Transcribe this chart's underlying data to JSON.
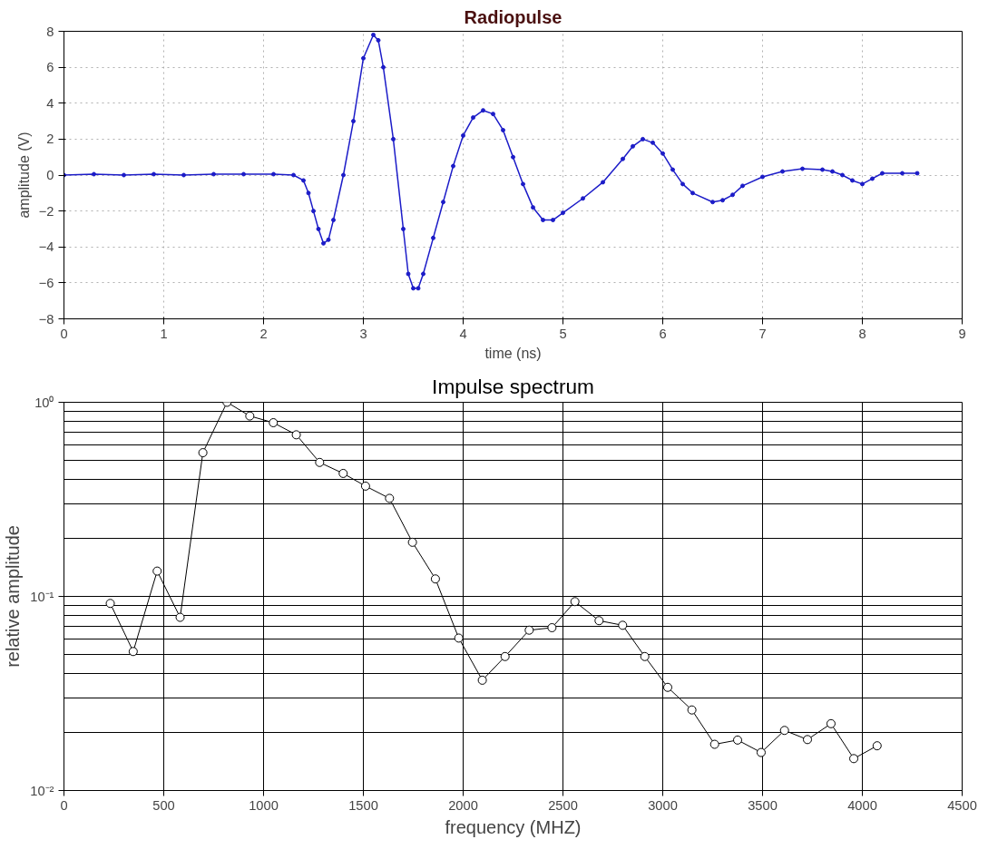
{
  "chart_data": [
    {
      "type": "line",
      "title": "Radiopulse",
      "xlabel": "time (ns)",
      "ylabel": "amplitude (V)",
      "xlim": [
        0,
        9
      ],
      "ylim": [
        -8,
        8
      ],
      "xticks": [
        0,
        1,
        2,
        3,
        4,
        5,
        6,
        7,
        8,
        9
      ],
      "yticks": [
        -8,
        -6,
        -4,
        -2,
        0,
        2,
        4,
        6,
        8
      ],
      "grid": true,
      "marker": "circle",
      "line_style": "solid",
      "series": [
        {
          "color": "#1c1cc8",
          "x": [
            0,
            0.3,
            0.6,
            0.9,
            1.2,
            1.5,
            1.8,
            2.1,
            2.3,
            2.4,
            2.45,
            2.5,
            2.55,
            2.6,
            2.65,
            2.7,
            2.8,
            2.9,
            3.0,
            3.1,
            3.15,
            3.2,
            3.3,
            3.4,
            3.45,
            3.5,
            3.55,
            3.6,
            3.7,
            3.8,
            3.9,
            4.0,
            4.1,
            4.2,
            4.3,
            4.4,
            4.5,
            4.6,
            4.7,
            4.8,
            4.9,
            5.0,
            5.2,
            5.4,
            5.6,
            5.7,
            5.8,
            5.9,
            6.0,
            6.1,
            6.2,
            6.3,
            6.5,
            6.6,
            6.7,
            6.8,
            7.0,
            7.2,
            7.4,
            7.6,
            7.7,
            7.8,
            7.9,
            8.0,
            8.1,
            8.2,
            8.4,
            8.55
          ],
          "values": [
            0,
            0.05,
            0,
            0.05,
            0,
            0.05,
            0.05,
            0.05,
            0,
            -0.3,
            -1,
            -2,
            -3,
            -3.8,
            -3.6,
            -2.5,
            0,
            3,
            6.5,
            7.8,
            7.5,
            6,
            2,
            -3,
            -5.5,
            -6.3,
            -6.3,
            -5.5,
            -3.5,
            -1.5,
            0.5,
            2.2,
            3.2,
            3.6,
            3.4,
            2.5,
            1.0,
            -0.5,
            -1.8,
            -2.5,
            -2.5,
            -2.1,
            -1.3,
            -0.4,
            0.9,
            1.6,
            2.0,
            1.8,
            1.2,
            0.3,
            -0.5,
            -1.0,
            -1.5,
            -1.4,
            -1.1,
            -0.6,
            -0.1,
            0.2,
            0.35,
            0.3,
            0.2,
            0.0,
            -0.3,
            -0.5,
            -0.2,
            0.1,
            0.1,
            0.1
          ]
        }
      ]
    },
    {
      "type": "line",
      "title": "Impulse spectrum",
      "xlabel": "frequency (MHZ)",
      "ylabel": "relative amplitude",
      "log": "y",
      "xlim": [
        0,
        4500
      ],
      "ylim": [
        0.01,
        1
      ],
      "xticks": [
        0,
        500,
        1000,
        1500,
        2000,
        2500,
        3000,
        3500,
        4000,
        4500
      ],
      "yticks": [
        {
          "value": 0.01,
          "label": "10⁻²"
        },
        {
          "value": 0.1,
          "label": "10⁻¹"
        },
        {
          "value": 1,
          "label": "10⁰"
        }
      ],
      "grid": true,
      "marker": "circle",
      "line_style": "solid",
      "series": [
        {
          "color": "#000000",
          "x": [
            232,
            347,
            467,
            582,
            696,
            817,
            931,
            1049,
            1164,
            1281,
            1399,
            1511,
            1631,
            1746,
            1861,
            1978,
            2096,
            2210,
            2331,
            2445,
            2560,
            2681,
            2799,
            2910,
            3025,
            3146,
            3260,
            3375,
            3493,
            3610,
            3725,
            3843,
            3957,
            4074
          ],
          "values": [
            0.092,
            0.052,
            0.135,
            0.078,
            0.55,
            1.0,
            0.85,
            0.785,
            0.68,
            0.49,
            0.43,
            0.37,
            0.32,
            0.19,
            0.123,
            0.061,
            0.037,
            0.049,
            0.067,
            0.069,
            0.094,
            0.075,
            0.071,
            0.049,
            0.034,
            0.026,
            0.0173,
            0.0182,
            0.0157,
            0.0204,
            0.0183,
            0.0221,
            0.0146,
            0.017
          ]
        }
      ]
    }
  ]
}
